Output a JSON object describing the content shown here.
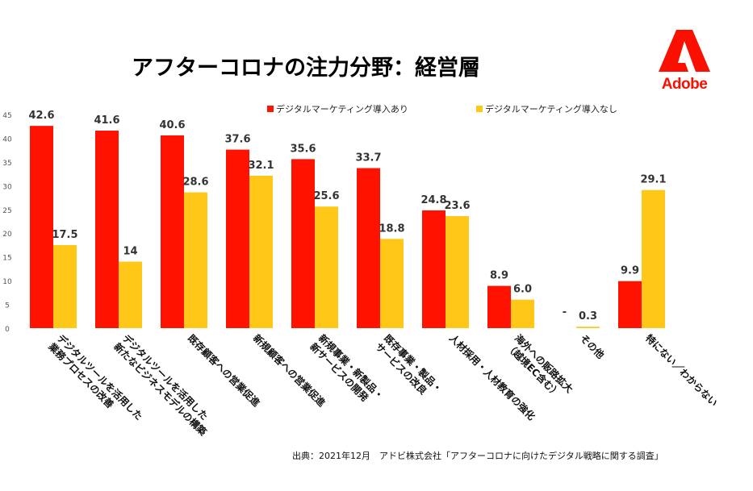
{
  "title": "アフターコロナの注力分野：経営層",
  "logo": {
    "text": "Adobe",
    "icon": "adobe-logo-icon"
  },
  "source": "出典：2021年12月　アドビ株式会社「アフターコロナに向けたデジタル戦略に関する調査」",
  "colors": {
    "with_dm": "#ff1200",
    "without_dm": "#ffc819",
    "adobe_red": "#fa0f00"
  },
  "chart_data": {
    "type": "bar",
    "title": "アフターコロナの注力分野：経営層",
    "legend_position": "top",
    "grid": false,
    "ylim": [
      0,
      45
    ],
    "yticks": [
      "0",
      "5",
      "10",
      "15",
      "20",
      "25",
      "30",
      "35",
      "40",
      "45"
    ],
    "categories": [
      [
        "デジタルツールを活用した",
        "業務プロセスの改善"
      ],
      [
        "デジタルツールを活用した",
        "新たなビジネスモデルの構築"
      ],
      [
        "既存顧客への営業促進"
      ],
      [
        "新規顧客への営業促進"
      ],
      [
        "新規事業・新製品・",
        "新サービスの開発"
      ],
      [
        "既存事業・製品・",
        "サービスの改良"
      ],
      [
        "人材採用・人材教育の強化"
      ],
      [
        "海外への販路拡大",
        "（越境EC含む）"
      ],
      [
        "その他"
      ],
      [
        "特にない／わからない"
      ]
    ],
    "series": [
      {
        "name": "デジタルマーケティング導入あり",
        "values": [
          42.6,
          41.6,
          40.6,
          37.6,
          35.6,
          33.7,
          24.8,
          8.9,
          null,
          9.9
        ],
        "labels": [
          "42.6",
          "41.6",
          "40.6",
          "37.6",
          "35.6",
          "33.7",
          "24.8",
          "8.9",
          "-",
          "9.9"
        ]
      },
      {
        "name": "デジタルマーケティング導入なし",
        "values": [
          17.5,
          14,
          28.6,
          32.1,
          25.6,
          18.8,
          23.6,
          6.0,
          0.3,
          29.1
        ],
        "labels": [
          "17.5",
          "14",
          "28.6",
          "32.1",
          "25.6",
          "18.8",
          "23.6",
          "6.0",
          "0.3",
          "29.1"
        ]
      }
    ]
  }
}
